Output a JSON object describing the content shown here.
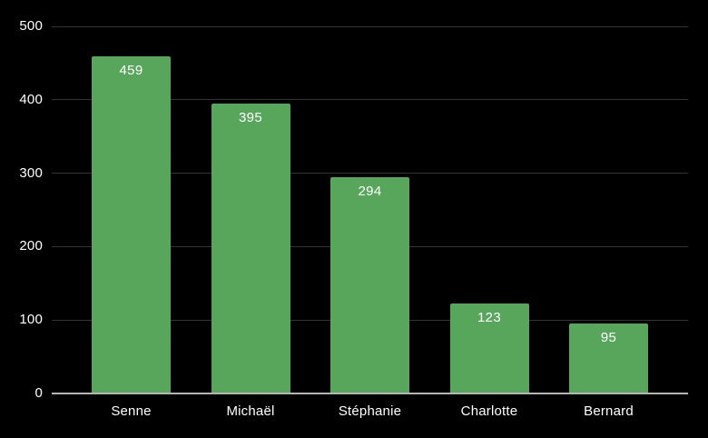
{
  "chart_data": {
    "type": "bar",
    "categories": [
      "Senne",
      "Michaël",
      "Stéphanie",
      "Charlotte",
      "Bernard"
    ],
    "values": [
      459,
      395,
      294,
      123,
      95
    ],
    "title": "",
    "xlabel": "",
    "ylabel": "",
    "ylim": [
      0,
      500
    ],
    "yticks": [
      0,
      100,
      200,
      300,
      400,
      500
    ],
    "grid": true,
    "legend_position": "none",
    "value_labels_shown": true,
    "colors": {
      "background": "#000000",
      "bar": "#58a55c",
      "bar_value_label": "#ffffff",
      "tick_label": "#ffffff",
      "category_label": "#ffffff",
      "gridline": "#333333",
      "axis_line": "#b5b5b5"
    }
  }
}
